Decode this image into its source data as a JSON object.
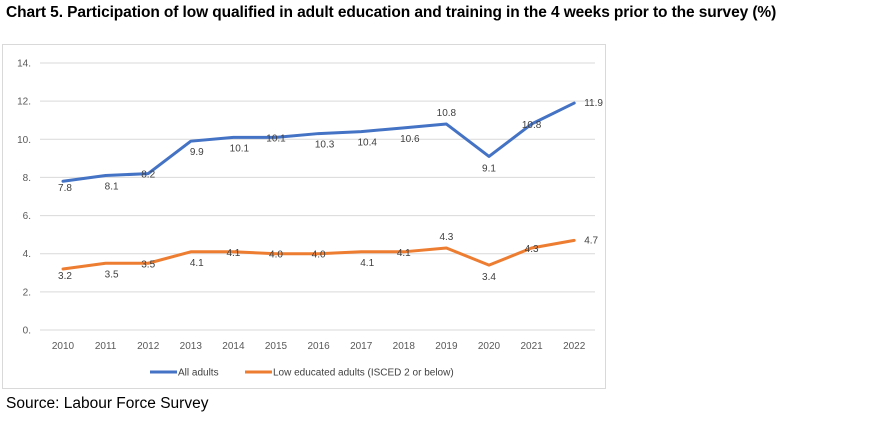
{
  "title": "Chart 5. Participation of low qualified in adult education and training in the 4 weeks prior to the survey (%)",
  "source": "Source: Labour Force Survey",
  "chart_data": {
    "type": "line",
    "categories": [
      "2010",
      "2011",
      "2012",
      "2013",
      "2014",
      "2015",
      "2016",
      "2017",
      "2018",
      "2019",
      "2020",
      "2021",
      "2022"
    ],
    "y_tick_labels": [
      "0.",
      "2.",
      "4.",
      "6.",
      "8.",
      "10.",
      "12.",
      "14."
    ],
    "ylim": [
      0,
      14
    ],
    "grid": true,
    "legend_position": "bottom",
    "series": [
      {
        "name": "All adults",
        "color": "#4472c4",
        "values": [
          7.8,
          8.1,
          8.2,
          9.9,
          10.1,
          10.1,
          10.3,
          10.4,
          10.6,
          10.8,
          9.1,
          10.8,
          11.9
        ],
        "labels": [
          "7.8",
          "8.1",
          "8.2",
          "9.9",
          "10.1",
          "10.1",
          "10.3",
          "10.4",
          "10.6",
          "10.8",
          "9.1",
          "10.8",
          "11.9"
        ]
      },
      {
        "name": "Low educated adults (ISCED 2 or below)",
        "color": "#ed7d31",
        "values": [
          3.2,
          3.5,
          3.5,
          4.1,
          4.1,
          4.0,
          4.0,
          4.1,
          4.1,
          4.3,
          3.4,
          4.3,
          4.7
        ],
        "labels": [
          "3.2",
          "3.5",
          "3.5",
          "4.1",
          "4.1",
          "4.0",
          "4.0",
          "4.1",
          "4.1",
          "4.3",
          "3.4",
          "4.3",
          "4.7"
        ]
      }
    ]
  }
}
